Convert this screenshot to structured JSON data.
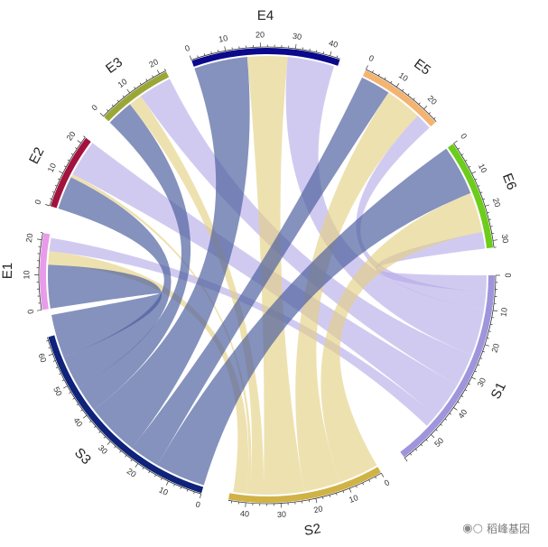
{
  "chart_data": {
    "type": "chord",
    "sectors": [
      {
        "id": "S1",
        "label": "S1",
        "color": "#9f95dc",
        "max": 60,
        "ticks": [
          0,
          10,
          20,
          30,
          40,
          50
        ]
      },
      {
        "id": "S2",
        "label": "S2",
        "color": "#d0b245",
        "max": 45,
        "ticks": [
          0,
          10,
          20,
          30,
          40
        ]
      },
      {
        "id": "S3",
        "label": "S3",
        "color": "#0f237a",
        "max": 65,
        "ticks": [
          0,
          10,
          20,
          30,
          40,
          50,
          60
        ]
      },
      {
        "id": "E1",
        "label": "E1",
        "color": "#e79be8",
        "max": 22,
        "ticks": [
          0,
          10,
          20
        ]
      },
      {
        "id": "E2",
        "label": "E2",
        "color": "#a3113f",
        "max": 22,
        "ticks": [
          0,
          10,
          20
        ]
      },
      {
        "id": "E3",
        "label": "E3",
        "color": "#9aa737",
        "max": 22,
        "ticks": [
          0,
          10,
          20
        ]
      },
      {
        "id": "E4",
        "label": "E4",
        "color": "#0b0a8c",
        "max": 43,
        "ticks": [
          0,
          10,
          20,
          30,
          40
        ]
      },
      {
        "id": "E5",
        "label": "E5",
        "color": "#f3b471",
        "max": 25,
        "ticks": [
          0,
          10,
          20
        ]
      },
      {
        "id": "E6",
        "label": "E6",
        "color": "#6ccd1b",
        "max": 32,
        "ticks": [
          0,
          10,
          20,
          30
        ]
      }
    ],
    "links": [
      {
        "from": "S1",
        "to": "E1",
        "value": 4
      },
      {
        "from": "S1",
        "to": "E2",
        "value": 11
      },
      {
        "from": "S1",
        "to": "E3",
        "value": 10
      },
      {
        "from": "S1",
        "to": "E4",
        "value": 14
      },
      {
        "from": "S1",
        "to": "E5",
        "value": 5
      },
      {
        "from": "S1",
        "to": "E6",
        "value": 5
      },
      {
        "from": "S2",
        "to": "E1",
        "value": 4
      },
      {
        "from": "S2",
        "to": "E2",
        "value": 1
      },
      {
        "from": "S2",
        "to": "E3",
        "value": 4
      },
      {
        "from": "S2",
        "to": "E4",
        "value": 12
      },
      {
        "from": "S2",
        "to": "E5",
        "value": 11
      },
      {
        "from": "S2",
        "to": "E6",
        "value": 12
      },
      {
        "from": "S3",
        "to": "E1",
        "value": 13
      },
      {
        "from": "S3",
        "to": "E2",
        "value": 10
      },
      {
        "from": "S3",
        "to": "E3",
        "value": 8
      },
      {
        "from": "S3",
        "to": "E4",
        "value": 16
      },
      {
        "from": "S3",
        "to": "E5",
        "value": 9
      },
      {
        "from": "S3",
        "to": "E6",
        "value": 15
      }
    ],
    "link_colors": {
      "S1": "#b4aae6",
      "S2": "#e3cf7f",
      "S3": "#4b5e9e"
    }
  },
  "watermark": {
    "icon": "wechat-icon",
    "text": "稻峰基因"
  }
}
